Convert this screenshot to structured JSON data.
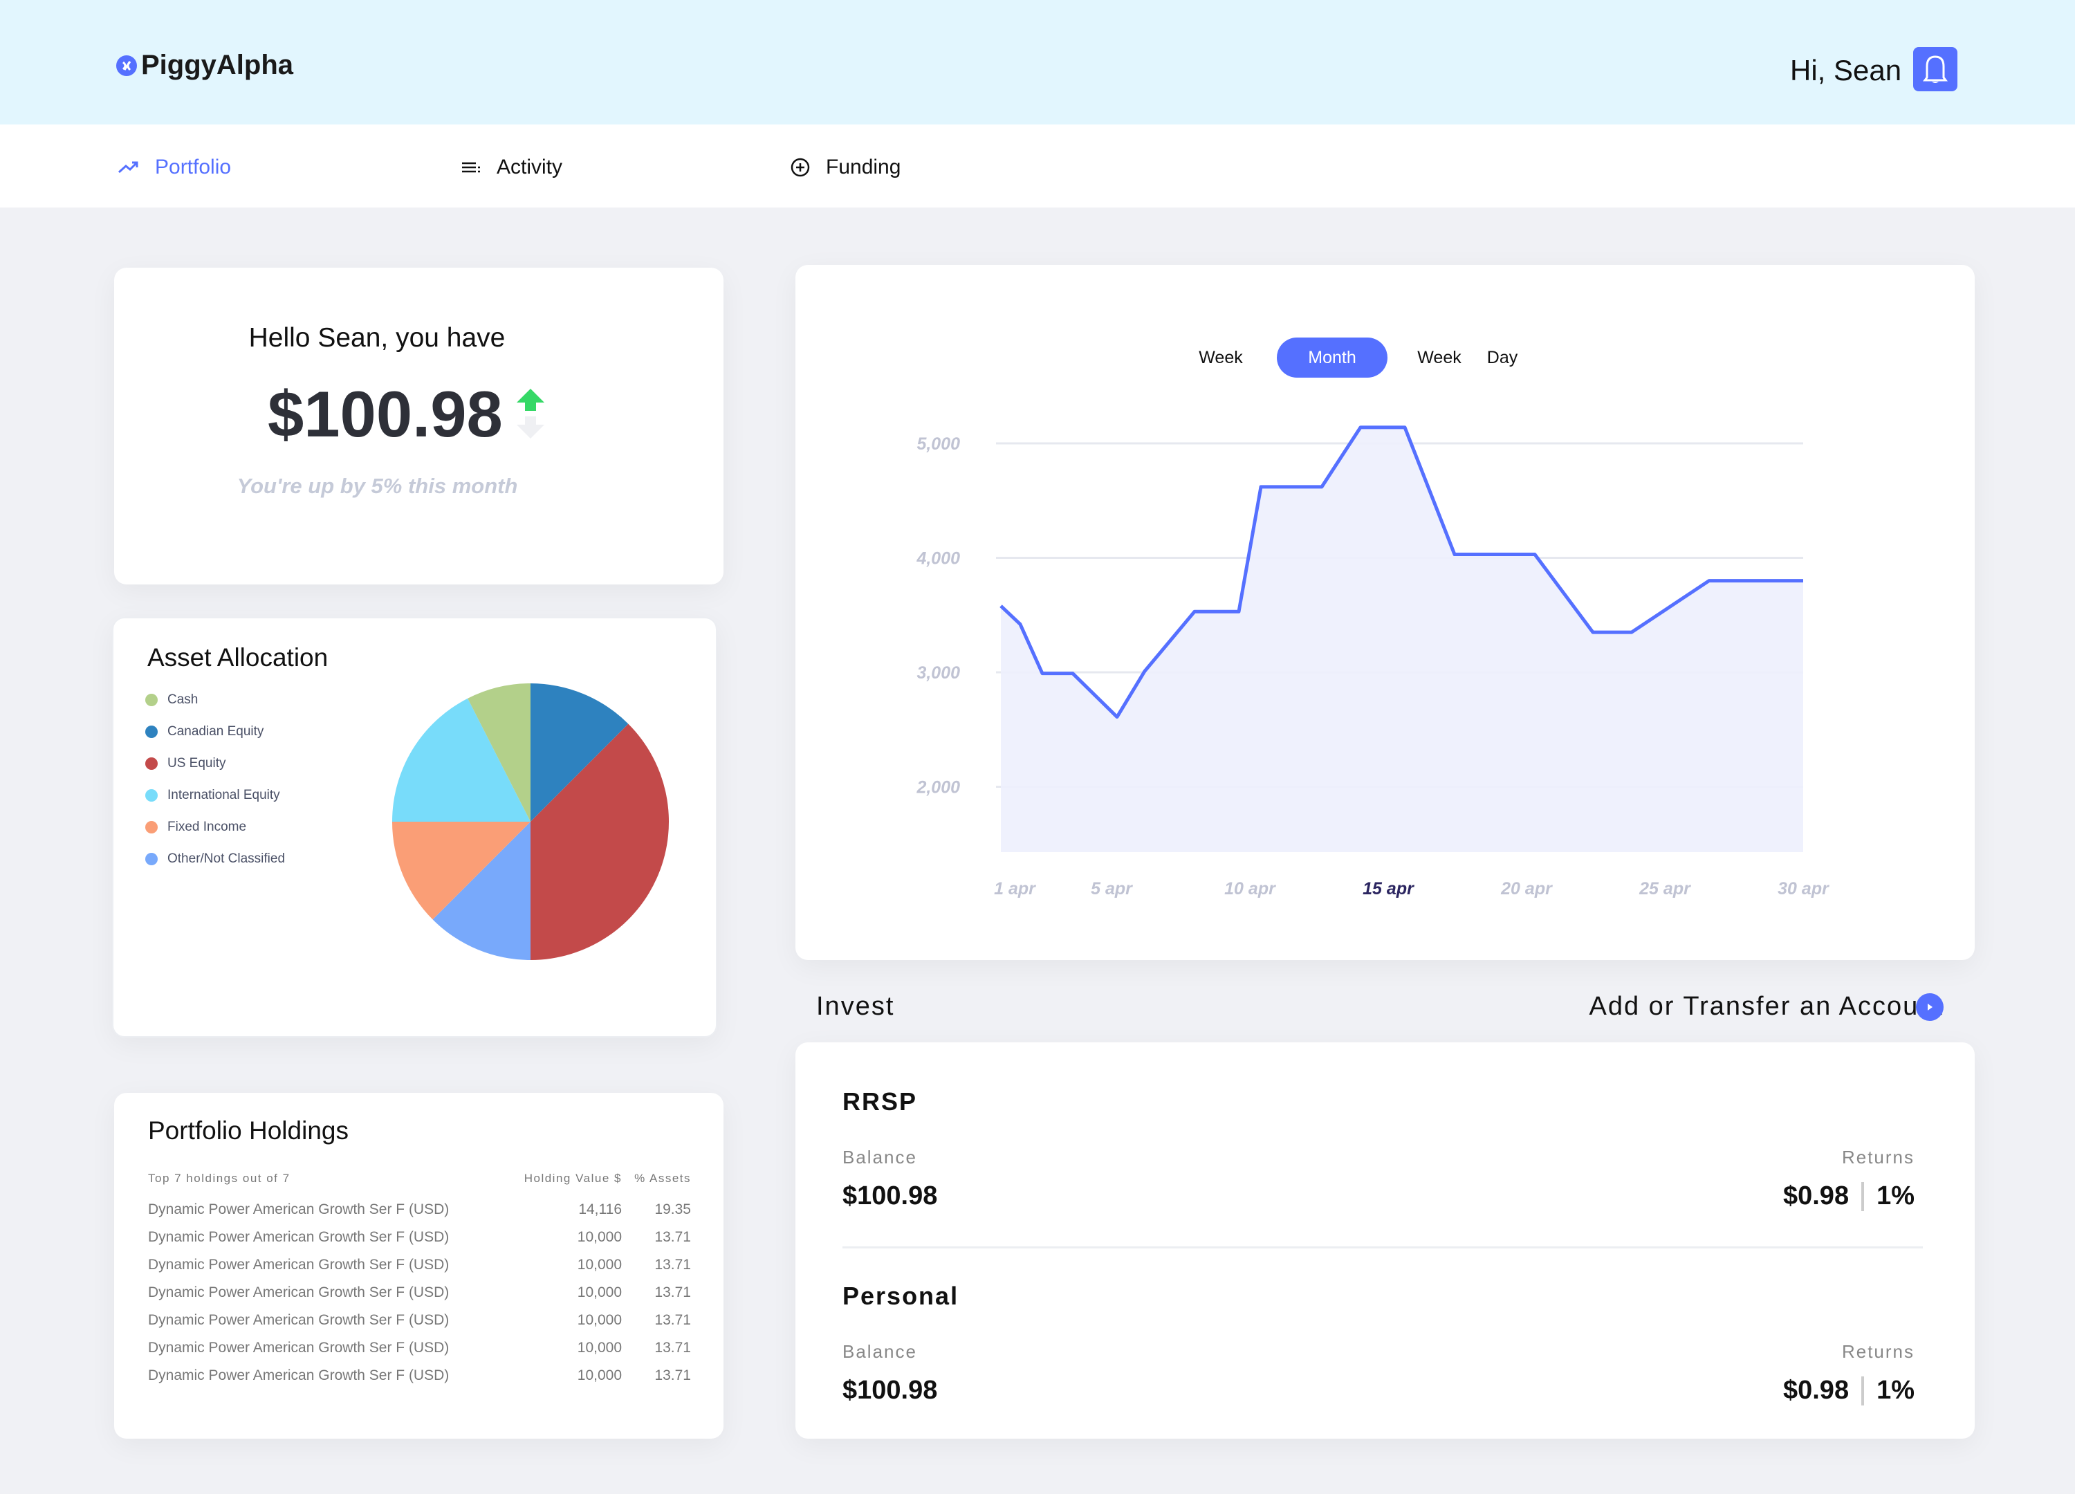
{
  "header": {
    "brand": "PiggyAlpha",
    "greeting": "Hi, Sean",
    "bell_icon": "bell-icon",
    "brand_color": "#5570ff",
    "bg_color": "#e2f6fe"
  },
  "nav": [
    {
      "label": "Portfolio",
      "icon": "trending-up-icon",
      "active": true
    },
    {
      "label": "Activity",
      "icon": "list-icon",
      "active": false
    },
    {
      "label": "Funding",
      "icon": "plus-circle-icon",
      "active": false
    }
  ],
  "summary": {
    "greeting": "Hello Sean, you have",
    "amount": "$100.98",
    "trend": "up",
    "note": "You're up by 5% this month"
  },
  "allocation": {
    "title": "Asset Allocation"
  },
  "holdings": {
    "title": "Portfolio Holdings",
    "caption": "Top 7 holdings out of 7",
    "col_value": "Holding Value $",
    "col_pct": "% Assets",
    "rows": [
      {
        "name": "Dynamic Power American Growth Ser F (USD)",
        "value": "14,116",
        "pct": "19.35"
      },
      {
        "name": "Dynamic Power American Growth Ser F (USD)",
        "value": "10,000",
        "pct": "13.71"
      },
      {
        "name": "Dynamic Power American Growth Ser F (USD)",
        "value": "10,000",
        "pct": "13.71"
      },
      {
        "name": "Dynamic Power American Growth Ser F (USD)",
        "value": "10,000",
        "pct": "13.71"
      },
      {
        "name": "Dynamic Power American Growth Ser F (USD)",
        "value": "10,000",
        "pct": "13.71"
      },
      {
        "name": "Dynamic Power American Growth Ser F (USD)",
        "value": "10,000",
        "pct": "13.71"
      },
      {
        "name": "Dynamic Power American Growth Ser F (USD)",
        "value": "10,000",
        "pct": "13.71"
      }
    ]
  },
  "range_tabs": [
    {
      "label": "Week",
      "active": false
    },
    {
      "label": "Month",
      "active": true
    },
    {
      "label": "Week",
      "active": false
    },
    {
      "label": "Day",
      "active": false
    }
  ],
  "invest": {
    "title": "Invest",
    "add_transfer": "Add or Transfer an Account",
    "accounts": [
      {
        "name": "RRSP",
        "balance_label": "Balance",
        "balance": "$100.98",
        "returns_label": "Returns",
        "returns": "$0.98",
        "returns_pct": "1%"
      },
      {
        "name": "Personal",
        "balance_label": "Balance",
        "balance": "$100.98",
        "returns_label": "Returns",
        "returns": "$0.98",
        "returns_pct": "1%"
      }
    ]
  },
  "chart_data": [
    {
      "type": "area",
      "x_unit": "day of April",
      "y_ticks": [
        "5,000",
        "4,000",
        "3,000",
        "2,000"
      ],
      "y_tick_values": [
        5000,
        4000,
        3000,
        2000
      ],
      "x_ticks": [
        "1 apr",
        "5 apr",
        "10 apr",
        "15 apr",
        "20 apr",
        "25 apr",
        "30 apr"
      ],
      "x_tick_values": [
        1,
        5,
        10,
        15,
        20,
        25,
        30
      ],
      "highlighted_tick": "15 apr",
      "x": [
        1,
        1.7,
        2.5,
        3.6,
        5.2,
        6.2,
        8,
        9.6,
        10.4,
        12.6,
        14,
        15.6,
        17.4,
        20.3,
        22.4,
        23.8,
        26.6,
        30
      ],
      "y": [
        3580,
        3420,
        2990,
        2990,
        2610,
        3010,
        3530,
        3530,
        4620,
        4620,
        5140,
        5140,
        4030,
        4030,
        3350,
        3350,
        3800,
        3800
      ],
      "line_color": "#5570ff",
      "fill_color": "#edf0fd",
      "grid": true
    },
    {
      "type": "pie",
      "categories": [
        "Cash",
        "Canadian Equity",
        "US Equity",
        "International Equity",
        "Fixed Income",
        "Other/Not Classified"
      ],
      "values": [
        7.5,
        12.5,
        37.5,
        17.5,
        12.5,
        12.5
      ],
      "colors": [
        "#b3d08a",
        "#2e82bf",
        "#c34a4a",
        "#78dcfa",
        "#fa9e76",
        "#78a9fb"
      ],
      "legend": "left"
    }
  ]
}
